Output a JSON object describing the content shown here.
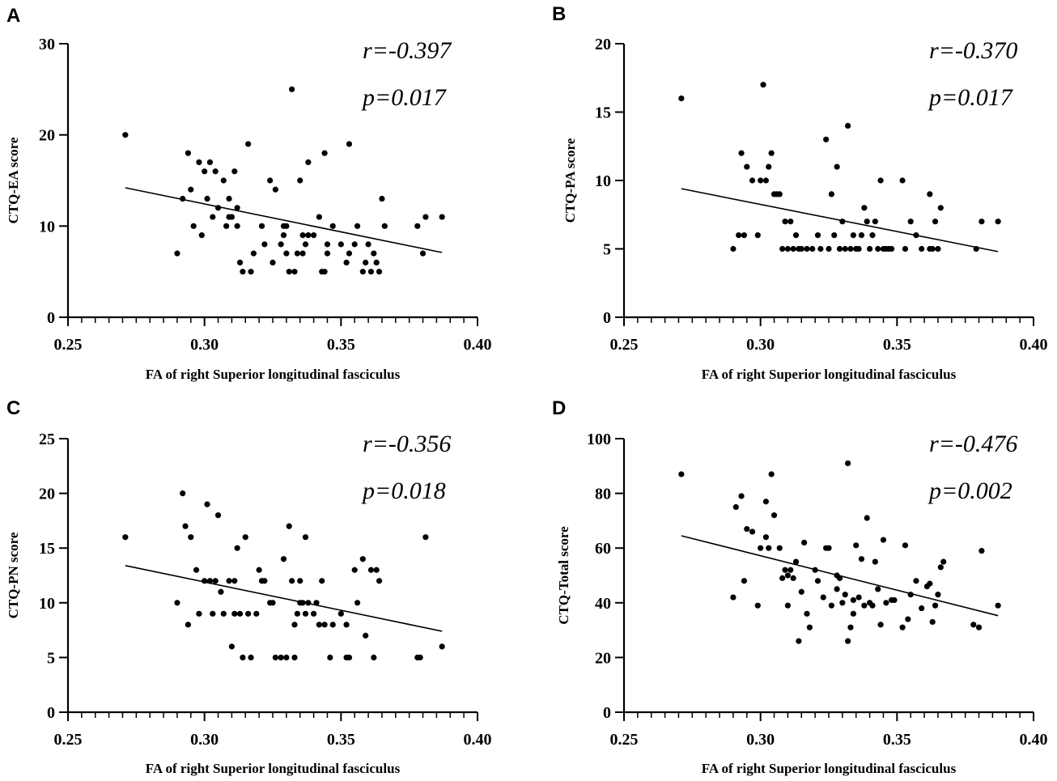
{
  "chart_data": [
    {
      "panel": "A",
      "type": "scatter",
      "xlabel": "FA of right Superior longitudinal fasciculus",
      "ylabel": "CTQ-EA score",
      "xlim": [
        0.25,
        0.4
      ],
      "ylim": [
        0,
        30
      ],
      "xticks": [
        "0.25",
        "0.30",
        "0.35",
        "0.40"
      ],
      "yticks": [
        "0",
        "10",
        "20",
        "30"
      ],
      "yticks_values": [
        0,
        10,
        20,
        30
      ],
      "stat_r": "r=-0.397",
      "stat_p": "p=0.017",
      "fit": {
        "x": [
          0.271,
          0.387
        ],
        "y": [
          14.2,
          7.1
        ]
      },
      "points": [
        [
          0.271,
          20
        ],
        [
          0.29,
          7
        ],
        [
          0.292,
          13
        ],
        [
          0.294,
          18
        ],
        [
          0.295,
          14
        ],
        [
          0.296,
          10
        ],
        [
          0.298,
          17
        ],
        [
          0.299,
          9
        ],
        [
          0.3,
          16
        ],
        [
          0.301,
          13
        ],
        [
          0.302,
          17
        ],
        [
          0.303,
          11
        ],
        [
          0.304,
          16
        ],
        [
          0.305,
          12
        ],
        [
          0.307,
          15
        ],
        [
          0.308,
          10
        ],
        [
          0.309,
          11
        ],
        [
          0.309,
          13
        ],
        [
          0.31,
          11
        ],
        [
          0.311,
          16
        ],
        [
          0.312,
          10
        ],
        [
          0.312,
          12
        ],
        [
          0.313,
          6
        ],
        [
          0.314,
          5
        ],
        [
          0.316,
          19
        ],
        [
          0.317,
          5
        ],
        [
          0.318,
          7
        ],
        [
          0.321,
          10
        ],
        [
          0.322,
          8
        ],
        [
          0.324,
          15
        ],
        [
          0.325,
          6
        ],
        [
          0.326,
          14
        ],
        [
          0.328,
          8
        ],
        [
          0.329,
          10
        ],
        [
          0.329,
          9
        ],
        [
          0.33,
          10
        ],
        [
          0.33,
          7
        ],
        [
          0.331,
          5
        ],
        [
          0.332,
          25
        ],
        [
          0.333,
          5
        ],
        [
          0.334,
          7
        ],
        [
          0.335,
          15
        ],
        [
          0.336,
          9
        ],
        [
          0.336,
          7
        ],
        [
          0.337,
          8
        ],
        [
          0.338,
          17
        ],
        [
          0.338,
          9
        ],
        [
          0.34,
          9
        ],
        [
          0.342,
          11
        ],
        [
          0.343,
          5
        ],
        [
          0.344,
          18
        ],
        [
          0.344,
          5
        ],
        [
          0.345,
          8
        ],
        [
          0.345,
          7
        ],
        [
          0.347,
          10
        ],
        [
          0.35,
          8
        ],
        [
          0.352,
          6
        ],
        [
          0.353,
          19
        ],
        [
          0.353,
          7
        ],
        [
          0.355,
          8
        ],
        [
          0.356,
          10
        ],
        [
          0.358,
          5
        ],
        [
          0.359,
          6
        ],
        [
          0.36,
          8
        ],
        [
          0.361,
          5
        ],
        [
          0.362,
          7
        ],
        [
          0.363,
          6
        ],
        [
          0.364,
          5
        ],
        [
          0.365,
          13
        ],
        [
          0.366,
          10
        ],
        [
          0.378,
          10
        ],
        [
          0.38,
          7
        ],
        [
          0.381,
          11
        ],
        [
          0.387,
          11
        ]
      ]
    },
    {
      "panel": "B",
      "type": "scatter",
      "xlabel": "FA of right Superior longitudinal fasciculus",
      "ylabel": "CTQ-PA score",
      "xlim": [
        0.25,
        0.4
      ],
      "ylim": [
        0,
        20
      ],
      "xticks": [
        "0.25",
        "0.30",
        "0.35",
        "0.40"
      ],
      "yticks": [
        "0",
        "5",
        "10",
        "15",
        "20"
      ],
      "yticks_values": [
        0,
        5,
        10,
        15,
        20
      ],
      "stat_r": "r=-0.370",
      "stat_p": "p=0.017",
      "fit": {
        "x": [
          0.271,
          0.387
        ],
        "y": [
          9.4,
          4.8
        ]
      },
      "points": [
        [
          0.271,
          16
        ],
        [
          0.29,
          5
        ],
        [
          0.292,
          6
        ],
        [
          0.293,
          12
        ],
        [
          0.294,
          6
        ],
        [
          0.295,
          11
        ],
        [
          0.297,
          10
        ],
        [
          0.299,
          6
        ],
        [
          0.3,
          10
        ],
        [
          0.301,
          17
        ],
        [
          0.302,
          10
        ],
        [
          0.303,
          11
        ],
        [
          0.304,
          12
        ],
        [
          0.305,
          9
        ],
        [
          0.306,
          9
        ],
        [
          0.307,
          9
        ],
        [
          0.308,
          5
        ],
        [
          0.309,
          7
        ],
        [
          0.31,
          5
        ],
        [
          0.311,
          7
        ],
        [
          0.312,
          5
        ],
        [
          0.313,
          6
        ],
        [
          0.314,
          5
        ],
        [
          0.315,
          5
        ],
        [
          0.317,
          5
        ],
        [
          0.319,
          5
        ],
        [
          0.321,
          6
        ],
        [
          0.322,
          5
        ],
        [
          0.324,
          13
        ],
        [
          0.325,
          5
        ],
        [
          0.326,
          9
        ],
        [
          0.327,
          6
        ],
        [
          0.328,
          11
        ],
        [
          0.329,
          5
        ],
        [
          0.33,
          7
        ],
        [
          0.331,
          5
        ],
        [
          0.332,
          14
        ],
        [
          0.333,
          5
        ],
        [
          0.334,
          6
        ],
        [
          0.335,
          5
        ],
        [
          0.336,
          5
        ],
        [
          0.337,
          6
        ],
        [
          0.338,
          8
        ],
        [
          0.339,
          7
        ],
        [
          0.34,
          5
        ],
        [
          0.341,
          6
        ],
        [
          0.342,
          7
        ],
        [
          0.343,
          5
        ],
        [
          0.344,
          10
        ],
        [
          0.345,
          5
        ],
        [
          0.346,
          5
        ],
        [
          0.347,
          5
        ],
        [
          0.348,
          5
        ],
        [
          0.352,
          10
        ],
        [
          0.353,
          5
        ],
        [
          0.355,
          7
        ],
        [
          0.357,
          6
        ],
        [
          0.359,
          5
        ],
        [
          0.362,
          9
        ],
        [
          0.362,
          5
        ],
        [
          0.363,
          5
        ],
        [
          0.364,
          7
        ],
        [
          0.365,
          5
        ],
        [
          0.366,
          8
        ],
        [
          0.379,
          5
        ],
        [
          0.381,
          7
        ],
        [
          0.387,
          7
        ]
      ]
    },
    {
      "panel": "C",
      "type": "scatter",
      "xlabel": "FA of right Superior longitudinal fasciculus",
      "ylabel": "CTQ-PN score",
      "xlim": [
        0.25,
        0.4
      ],
      "ylim": [
        0,
        25
      ],
      "xticks": [
        "0.25",
        "0.30",
        "0.35",
        "0.40"
      ],
      "yticks": [
        "0",
        "5",
        "10",
        "15",
        "20",
        "25"
      ],
      "yticks_values": [
        0,
        5,
        10,
        15,
        20,
        25
      ],
      "stat_r": "r=-0.356",
      "stat_p": "p=0.018",
      "fit": {
        "x": [
          0.271,
          0.387
        ],
        "y": [
          13.4,
          7.4
        ]
      },
      "points": [
        [
          0.271,
          16
        ],
        [
          0.29,
          10
        ],
        [
          0.292,
          20
        ],
        [
          0.293,
          17
        ],
        [
          0.294,
          8
        ],
        [
          0.295,
          16
        ],
        [
          0.297,
          13
        ],
        [
          0.298,
          9
        ],
        [
          0.3,
          12
        ],
        [
          0.301,
          19
        ],
        [
          0.302,
          12
        ],
        [
          0.303,
          9
        ],
        [
          0.304,
          12
        ],
        [
          0.305,
          18
        ],
        [
          0.306,
          11
        ],
        [
          0.307,
          9
        ],
        [
          0.309,
          12
        ],
        [
          0.31,
          6
        ],
        [
          0.311,
          9
        ],
        [
          0.311,
          12
        ],
        [
          0.312,
          15
        ],
        [
          0.313,
          9
        ],
        [
          0.314,
          5
        ],
        [
          0.315,
          16
        ],
        [
          0.316,
          9
        ],
        [
          0.317,
          5
        ],
        [
          0.319,
          9
        ],
        [
          0.32,
          13
        ],
        [
          0.321,
          12
        ],
        [
          0.322,
          12
        ],
        [
          0.324,
          10
        ],
        [
          0.325,
          10
        ],
        [
          0.326,
          5
        ],
        [
          0.328,
          5
        ],
        [
          0.329,
          14
        ],
        [
          0.33,
          5
        ],
        [
          0.331,
          17
        ],
        [
          0.332,
          12
        ],
        [
          0.333,
          8
        ],
        [
          0.333,
          5
        ],
        [
          0.334,
          9
        ],
        [
          0.335,
          12
        ],
        [
          0.335,
          10
        ],
        [
          0.336,
          10
        ],
        [
          0.337,
          9
        ],
        [
          0.337,
          16
        ],
        [
          0.338,
          10
        ],
        [
          0.34,
          9
        ],
        [
          0.341,
          10
        ],
        [
          0.342,
          8
        ],
        [
          0.343,
          12
        ],
        [
          0.344,
          8
        ],
        [
          0.346,
          5
        ],
        [
          0.347,
          8
        ],
        [
          0.35,
          9
        ],
        [
          0.352,
          8
        ],
        [
          0.352,
          5
        ],
        [
          0.353,
          5
        ],
        [
          0.355,
          13
        ],
        [
          0.356,
          10
        ],
        [
          0.358,
          14
        ],
        [
          0.359,
          7
        ],
        [
          0.361,
          13
        ],
        [
          0.362,
          5
        ],
        [
          0.363,
          13
        ],
        [
          0.364,
          12
        ],
        [
          0.378,
          5
        ],
        [
          0.379,
          5
        ],
        [
          0.381,
          16
        ],
        [
          0.387,
          6
        ]
      ]
    },
    {
      "panel": "D",
      "type": "scatter",
      "xlabel": "FA of right Superior longitudinal fasciculus",
      "ylabel": "CTQ-Total score",
      "xlim": [
        0.25,
        0.4
      ],
      "ylim": [
        0,
        100
      ],
      "xticks": [
        "0.25",
        "0.30",
        "0.35",
        "0.40"
      ],
      "yticks": [
        "0",
        "20",
        "40",
        "60",
        "80",
        "100"
      ],
      "yticks_values": [
        0,
        20,
        40,
        60,
        80,
        100
      ],
      "stat_r": "r=-0.476",
      "stat_p": "p=0.002",
      "fit": {
        "x": [
          0.271,
          0.387
        ],
        "y": [
          64.5,
          35.3
        ]
      },
      "points": [
        [
          0.271,
          87
        ],
        [
          0.29,
          42
        ],
        [
          0.291,
          75
        ],
        [
          0.293,
          79
        ],
        [
          0.294,
          48
        ],
        [
          0.295,
          67
        ],
        [
          0.297,
          66
        ],
        [
          0.299,
          39
        ],
        [
          0.3,
          60
        ],
        [
          0.302,
          64
        ],
        [
          0.302,
          77
        ],
        [
          0.303,
          60
        ],
        [
          0.304,
          87
        ],
        [
          0.305,
          72
        ],
        [
          0.307,
          60
        ],
        [
          0.308,
          49
        ],
        [
          0.309,
          52
        ],
        [
          0.31,
          39
        ],
        [
          0.31,
          50
        ],
        [
          0.311,
          52
        ],
        [
          0.312,
          49
        ],
        [
          0.313,
          55
        ],
        [
          0.314,
          26
        ],
        [
          0.315,
          44
        ],
        [
          0.316,
          62
        ],
        [
          0.317,
          36
        ],
        [
          0.318,
          31
        ],
        [
          0.32,
          52
        ],
        [
          0.321,
          48
        ],
        [
          0.323,
          42
        ],
        [
          0.324,
          60
        ],
        [
          0.325,
          60
        ],
        [
          0.326,
          39
        ],
        [
          0.328,
          45
        ],
        [
          0.328,
          50
        ],
        [
          0.329,
          49
        ],
        [
          0.33,
          40
        ],
        [
          0.331,
          43
        ],
        [
          0.332,
          26
        ],
        [
          0.332,
          91
        ],
        [
          0.333,
          31
        ],
        [
          0.334,
          36
        ],
        [
          0.334,
          41
        ],
        [
          0.335,
          61
        ],
        [
          0.336,
          42
        ],
        [
          0.337,
          56
        ],
        [
          0.338,
          39
        ],
        [
          0.339,
          71
        ],
        [
          0.34,
          40
        ],
        [
          0.341,
          39
        ],
        [
          0.342,
          55
        ],
        [
          0.343,
          45
        ],
        [
          0.344,
          32
        ],
        [
          0.345,
          63
        ],
        [
          0.346,
          40
        ],
        [
          0.348,
          41
        ],
        [
          0.349,
          41
        ],
        [
          0.352,
          31
        ],
        [
          0.353,
          61
        ],
        [
          0.354,
          34
        ],
        [
          0.355,
          43
        ],
        [
          0.357,
          48
        ],
        [
          0.359,
          38
        ],
        [
          0.361,
          46
        ],
        [
          0.362,
          47
        ],
        [
          0.363,
          33
        ],
        [
          0.364,
          39
        ],
        [
          0.365,
          43
        ],
        [
          0.366,
          53
        ],
        [
          0.367,
          55
        ],
        [
          0.378,
          32
        ],
        [
          0.38,
          31
        ],
        [
          0.381,
          59
        ],
        [
          0.387,
          39
        ]
      ]
    }
  ]
}
